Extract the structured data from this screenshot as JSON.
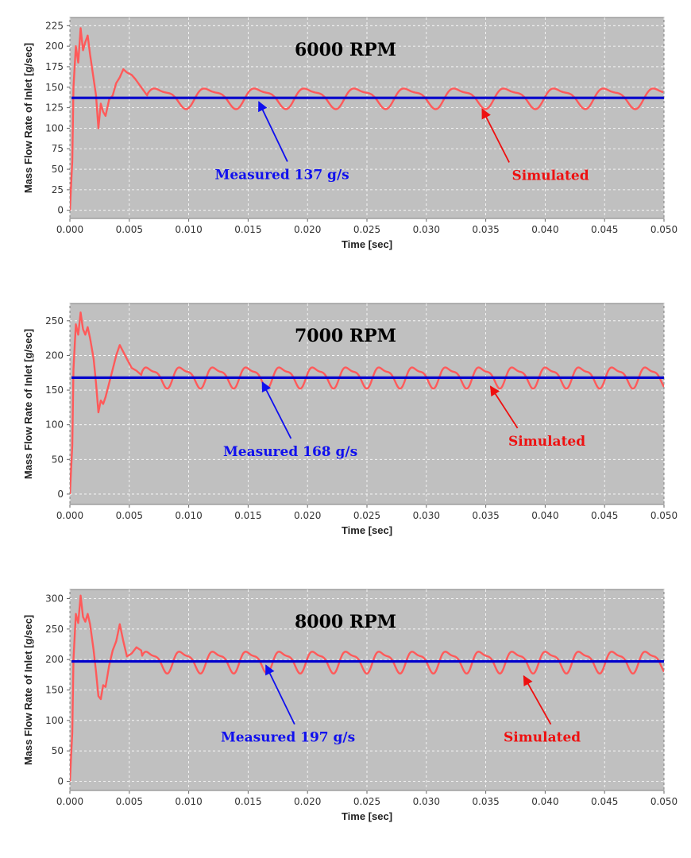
{
  "colors": {
    "plot_bg": "#c0c0c0",
    "grid": "#ffffff",
    "measured_line": "#0000cc",
    "simulated_line": "#ff5a5a",
    "measured_arrow": "#1010ee",
    "simulated_arrow": "#ee1010"
  },
  "chart_data": [
    {
      "type": "line",
      "title": "6000 RPM",
      "xlabel": "Time [sec]",
      "ylabel": "Mass Flow Rate of Inlet [g/sec]",
      "xlim": [
        0.0,
        0.05
      ],
      "ylim": [
        -10,
        235
      ],
      "xticks": [
        0.0,
        0.005,
        0.01,
        0.015,
        0.02,
        0.025,
        0.03,
        0.035,
        0.04,
        0.045,
        0.05
      ],
      "xtick_labels": [
        "0.000",
        "0.005",
        "0.010",
        "0.015",
        "0.020",
        "0.025",
        "0.030",
        "0.035",
        "0.040",
        "0.045",
        "0.050"
      ],
      "yticks": [
        0,
        25,
        50,
        75,
        100,
        125,
        150,
        175,
        200,
        225
      ],
      "ytick_labels": [
        "0",
        "25",
        "50",
        "75",
        "100",
        "125",
        "150",
        "175",
        "200",
        "225"
      ],
      "grid": true,
      "series": [
        {
          "name": "Measured",
          "style": "constant",
          "value": 137
        },
        {
          "name": "Simulated",
          "style": "oscillating",
          "initial": [
            [
              0.0,
              0
            ],
            [
              0.0002,
              60
            ],
            [
              0.0003,
              150
            ],
            [
              0.0005,
              200
            ],
            [
              0.0007,
              180
            ],
            [
              0.0009,
              222
            ],
            [
              0.0011,
              195
            ],
            [
              0.0013,
              205
            ],
            [
              0.0015,
              213
            ],
            [
              0.0017,
              190
            ],
            [
              0.002,
              160
            ],
            [
              0.0022,
              140
            ],
            [
              0.0024,
              100
            ],
            [
              0.0026,
              130
            ],
            [
              0.0028,
              120
            ],
            [
              0.003,
              115
            ],
            [
              0.0033,
              135
            ],
            [
              0.0036,
              140
            ],
            [
              0.0039,
              155
            ],
            [
              0.0042,
              162
            ],
            [
              0.0045,
              172
            ],
            [
              0.0048,
              168
            ],
            [
              0.0052,
              165
            ],
            [
              0.0055,
              160
            ],
            [
              0.006,
              150
            ],
            [
              0.0065,
              140
            ]
          ],
          "steady_mean": 138,
          "steady_amplitude": 14,
          "steady_period": 0.0042
        }
      ],
      "annotations": [
        {
          "text": "Measured 137 g/s",
          "series": "Measured",
          "point_to": [
            0.0159,
            137
          ],
          "text_at": [
            0.0122,
            38
          ]
        },
        {
          "text": "Simulated",
          "series": "Simulated",
          "point_to": [
            0.0347,
            127
          ],
          "text_at": [
            0.0372,
            37
          ]
        }
      ]
    },
    {
      "type": "line",
      "title": "7000 RPM",
      "xlabel": "Time [sec]",
      "ylabel": "Mass Flow Rate of Inlet [g/sec]",
      "xlim": [
        0.0,
        0.05
      ],
      "ylim": [
        -15,
        275
      ],
      "xticks": [
        0.0,
        0.005,
        0.01,
        0.015,
        0.02,
        0.025,
        0.03,
        0.035,
        0.04,
        0.045,
        0.05
      ],
      "xtick_labels": [
        "0.000",
        "0.005",
        "0.010",
        "0.015",
        "0.020",
        "0.025",
        "0.030",
        "0.035",
        "0.040",
        "0.045",
        "0.050"
      ],
      "yticks": [
        0,
        50,
        100,
        150,
        200,
        250
      ],
      "ytick_labels": [
        "0",
        "50",
        "100",
        "150",
        "200",
        "250"
      ],
      "grid": true,
      "series": [
        {
          "name": "Measured",
          "style": "constant",
          "value": 168
        },
        {
          "name": "Simulated",
          "style": "oscillating",
          "initial": [
            [
              0.0,
              0
            ],
            [
              0.0002,
              70
            ],
            [
              0.0003,
              180
            ],
            [
              0.0005,
              245
            ],
            [
              0.0007,
              230
            ],
            [
              0.0009,
              262
            ],
            [
              0.0011,
              238
            ],
            [
              0.0013,
              230
            ],
            [
              0.0015,
              241
            ],
            [
              0.0017,
              225
            ],
            [
              0.002,
              195
            ],
            [
              0.0022,
              160
            ],
            [
              0.0024,
              118
            ],
            [
              0.0026,
              135
            ],
            [
              0.0028,
              130
            ],
            [
              0.003,
              140
            ],
            [
              0.0033,
              160
            ],
            [
              0.0036,
              180
            ],
            [
              0.0039,
              200
            ],
            [
              0.0042,
              215
            ],
            [
              0.0045,
              205
            ],
            [
              0.0048,
              195
            ],
            [
              0.0052,
              182
            ],
            [
              0.0056,
              178
            ],
            [
              0.006,
              172
            ]
          ],
          "steady_mean": 170,
          "steady_amplitude": 17,
          "steady_period": 0.0028
        }
      ],
      "annotations": [
        {
          "text": "Measured 168 g/s",
          "series": "Measured",
          "point_to": [
            0.0162,
            167
          ],
          "text_at": [
            0.0129,
            55
          ]
        },
        {
          "text": "Simulated",
          "series": "Simulated",
          "point_to": [
            0.0354,
            160
          ],
          "text_at": [
            0.0369,
            70
          ]
        }
      ]
    },
    {
      "type": "line",
      "title": "8000 RPM",
      "xlabel": "Time [sec]",
      "ylabel": "Mass Flow Rate of Inlet [g/sec]",
      "xlim": [
        0.0,
        0.05
      ],
      "ylim": [
        -15,
        315
      ],
      "xticks": [
        0.0,
        0.005,
        0.01,
        0.015,
        0.02,
        0.025,
        0.03,
        0.035,
        0.04,
        0.045,
        0.05
      ],
      "xtick_labels": [
        "0.000",
        "0.005",
        "0.010",
        "0.015",
        "0.020",
        "0.025",
        "0.030",
        "0.035",
        "0.040",
        "0.045",
        "0.050"
      ],
      "yticks": [
        0,
        50,
        100,
        150,
        200,
        250,
        300
      ],
      "ytick_labels": [
        "0",
        "50",
        "100",
        "150",
        "200",
        "250",
        "300"
      ],
      "grid": true,
      "series": [
        {
          "name": "Measured",
          "style": "constant",
          "value": 197
        },
        {
          "name": "Simulated",
          "style": "oscillating",
          "initial": [
            [
              0.0,
              0
            ],
            [
              0.0002,
              80
            ],
            [
              0.0003,
              200
            ],
            [
              0.0005,
              275
            ],
            [
              0.0007,
              260
            ],
            [
              0.0009,
              305
            ],
            [
              0.0011,
              270
            ],
            [
              0.0013,
              262
            ],
            [
              0.0015,
              275
            ],
            [
              0.0017,
              258
            ],
            [
              0.002,
              215
            ],
            [
              0.0022,
              180
            ],
            [
              0.0024,
              140
            ],
            [
              0.0026,
              135
            ],
            [
              0.0028,
              158
            ],
            [
              0.003,
              155
            ],
            [
              0.0033,
              190
            ],
            [
              0.0036,
              215
            ],
            [
              0.0039,
              230
            ],
            [
              0.0042,
              258
            ],
            [
              0.0045,
              230
            ],
            [
              0.0048,
              205
            ],
            [
              0.0052,
              210
            ],
            [
              0.0056,
              220
            ],
            [
              0.006,
              215
            ]
          ],
          "steady_mean": 198,
          "steady_amplitude": 20,
          "steady_period": 0.0028
        }
      ],
      "annotations": [
        {
          "text": "Measured 197 g/s",
          "series": "Measured",
          "point_to": [
            0.0165,
            197
          ],
          "text_at": [
            0.0127,
            65
          ]
        },
        {
          "text": "Simulated",
          "series": "Simulated",
          "point_to": [
            0.0382,
            178
          ],
          "text_at": [
            0.0365,
            65
          ]
        }
      ]
    }
  ]
}
